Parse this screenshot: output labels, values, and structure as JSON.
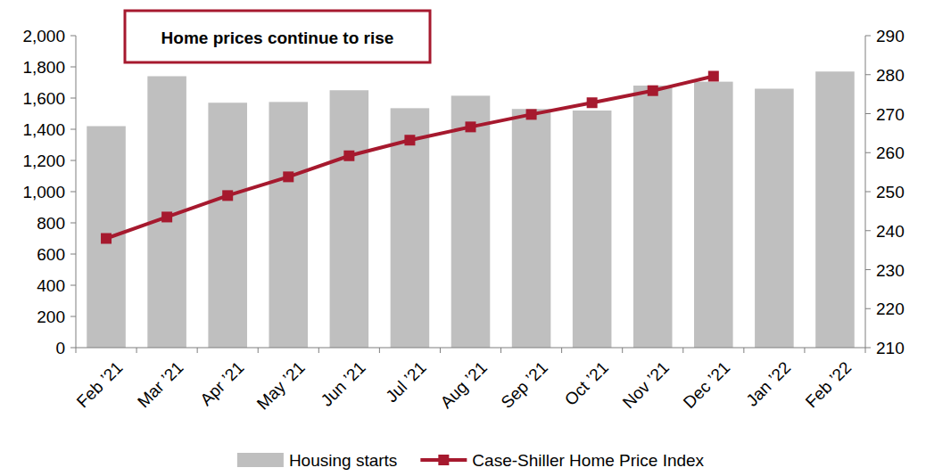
{
  "chart_data": {
    "type": "bar",
    "title": "Home prices continue to rise",
    "categories": [
      "Feb ’21",
      "Mar ’21",
      "Apr ’21",
      "May ’21",
      "Jun ’21",
      "Jul ’21",
      "Aug ’21",
      "Sep ’21",
      "Oct ’21",
      "Nov ’21",
      "Dec ’21",
      "Jan ’22",
      "Feb ’22"
    ],
    "series": [
      {
        "name": "Housing starts",
        "type": "bar",
        "color": "#bfbfbf",
        "values": [
          1420,
          1740,
          1570,
          1575,
          1650,
          1535,
          1615,
          1530,
          1520,
          1680,
          1705,
          1660,
          1770
        ]
      },
      {
        "name": "Case-Shiller Home Price Index",
        "type": "line",
        "axis": "y2",
        "color": "#a6192e",
        "marker": "square",
        "values": [
          238,
          243.5,
          249,
          253.8,
          259.2,
          263.2,
          266.6,
          269.8,
          272.8,
          275.9,
          279.6,
          null,
          null
        ]
      }
    ],
    "ylim": [
      0,
      2000
    ],
    "yticks": [
      0,
      200,
      400,
      600,
      800,
      {
        "value": 1000,
        "label": "1,000"
      },
      {
        "value": 1200,
        "label": "1,200"
      },
      {
        "value": 1400,
        "label": "1,400"
      },
      {
        "value": 1600,
        "label": "1,600"
      },
      {
        "value": 1800,
        "label": "1,800"
      },
      {
        "value": 2000,
        "label": "2,000"
      }
    ],
    "y2lim": [
      210,
      290
    ],
    "y2ticks": [
      210,
      220,
      230,
      240,
      250,
      260,
      270,
      280,
      290
    ],
    "grid": false,
    "legend": "bottom"
  }
}
